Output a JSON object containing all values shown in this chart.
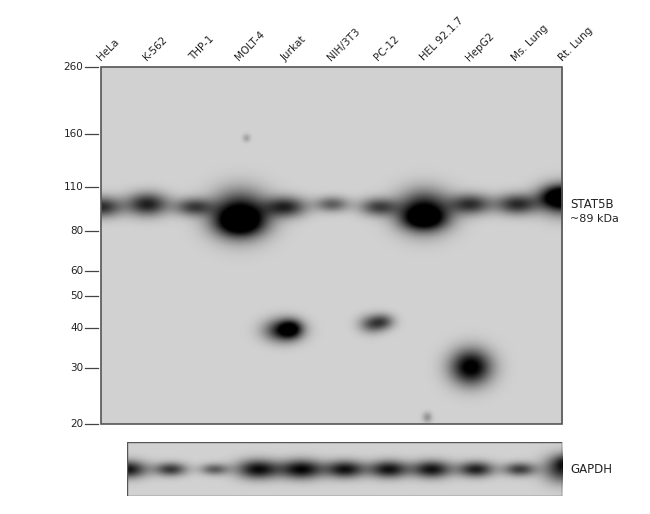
{
  "fig_bg": "#ffffff",
  "panel_bg": "#d2d2d2",
  "gapdh_bg": "#d0d0d0",
  "lane_labels": [
    "HeLa",
    "K-562",
    "THP-1",
    "MOLT-4",
    "Jurkat",
    "NIH/3T3",
    "PC-12",
    "HEL 92.1.7",
    "HepG2",
    "Ms. Lung",
    "Rt. Lung"
  ],
  "mw_markers": [
    260,
    160,
    110,
    80,
    60,
    50,
    40,
    30,
    20
  ],
  "right_label_top": "STAT5B",
  "right_label_bot": "~89 kDa",
  "gapdh_label": "GAPDH",
  "n_lanes": 11
}
